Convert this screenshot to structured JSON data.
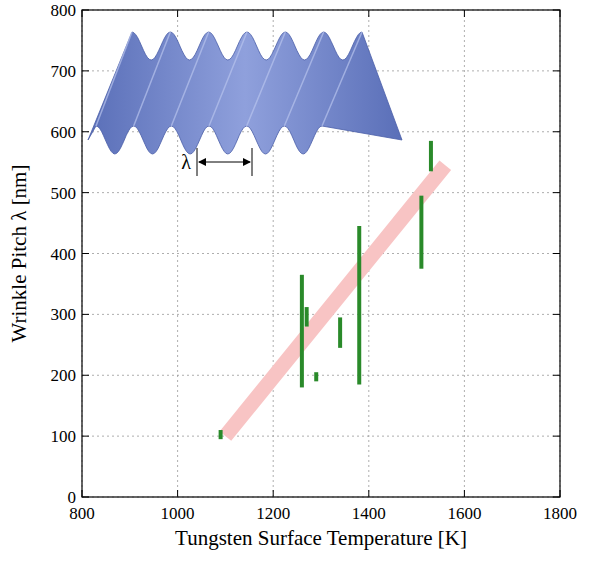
{
  "chart_data": {
    "type": "scatter",
    "x_label": "Tungsten Surface Temperature [K]",
    "y_label": "Wrinkle Pitch λ [nm]",
    "inset_label": "λ",
    "xlim": [
      800,
      1800
    ],
    "xticks": [
      800,
      1000,
      1200,
      1400,
      1600,
      1800
    ],
    "ylim": [
      0,
      800
    ],
    "yticks": [
      0,
      100,
      200,
      300,
      400,
      500,
      600,
      700,
      800
    ],
    "grid": true,
    "series": [
      {
        "type": "range",
        "color": "#2a8a2a",
        "x": [
          1090,
          1260,
          1270,
          1290,
          1340,
          1380,
          1510,
          1530
        ],
        "low": [
          95,
          180,
          280,
          190,
          245,
          185,
          375,
          535
        ],
        "high": [
          110,
          365,
          312,
          205,
          295,
          445,
          495,
          585
        ]
      },
      {
        "type": "line",
        "color": "#f8c4c4",
        "x": [
          1100,
          1560
        ],
        "values": [
          100,
          545
        ]
      }
    ]
  }
}
